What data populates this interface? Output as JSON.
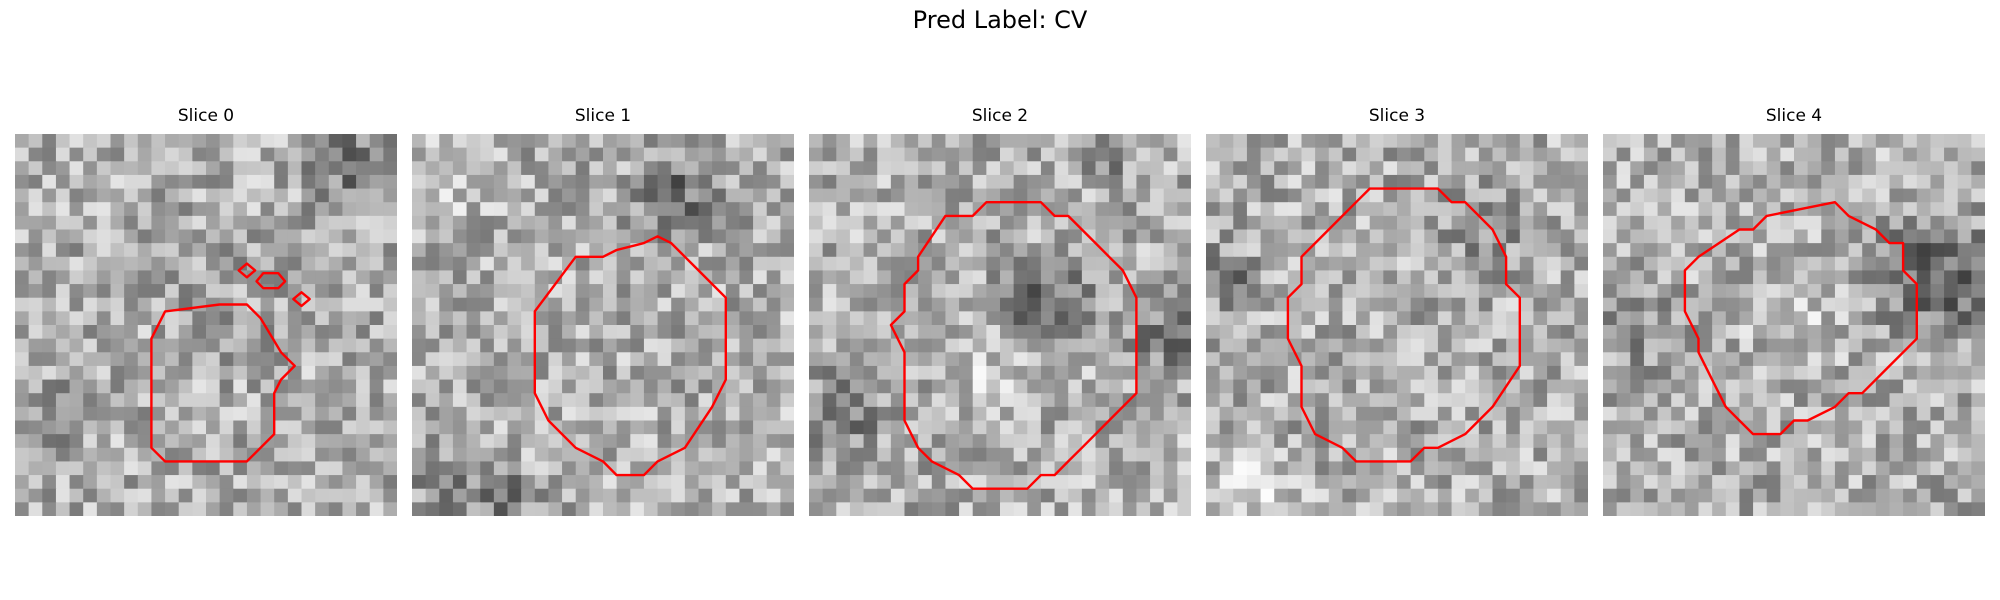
{
  "figure": {
    "suptitle": "Pred Label: CV"
  },
  "colors": {
    "contour": "#ff0000",
    "background": "#ffffff",
    "colormap": "gray"
  },
  "panels": [
    {
      "title": "Slice 0"
    },
    {
      "title": "Slice 1"
    },
    {
      "title": "Slice 2"
    },
    {
      "title": "Slice 3"
    },
    {
      "title": "Slice 4"
    }
  ]
}
